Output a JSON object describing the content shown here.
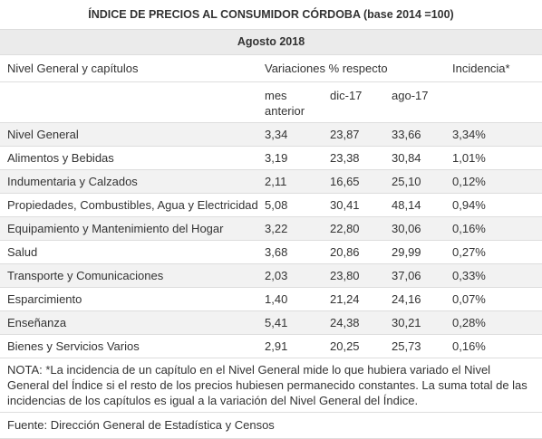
{
  "table": {
    "title": "ÍNDICE DE PRECIOS AL CONSUMIDOR CÓRDOBA (base 2014 =100)",
    "subtitle": "Agosto 2018",
    "header": {
      "label": "Nivel General y capítulos",
      "variaciones": "Variaciones % respecto",
      "incidencia": "Incidencia*",
      "sub": [
        "mes anterior",
        "dic-17",
        "ago-17"
      ]
    },
    "rows": [
      [
        "Nivel General",
        "3,34",
        "23,87",
        "33,66",
        "3,34%"
      ],
      [
        "Alimentos y Bebidas",
        "3,19",
        "23,38",
        "30,84",
        "1,01%"
      ],
      [
        "Indumentaria y Calzados",
        "2,11",
        "16,65",
        "25,10",
        "0,12%"
      ],
      [
        "Propiedades, Combustibles, Agua y Electricidad",
        "5,08",
        "30,41",
        "48,14",
        "0,94%"
      ],
      [
        "Equipamiento y Mantenimiento del Hogar",
        "3,22",
        "22,80",
        "30,06",
        "0,16%"
      ],
      [
        "Salud",
        "3,68",
        "20,86",
        "29,99",
        "0,27%"
      ],
      [
        "Transporte y Comunicaciones",
        "2,03",
        "23,80",
        "37,06",
        "0,33%"
      ],
      [
        "Esparcimiento",
        "1,40",
        "21,24",
        "24,16",
        "0,07%"
      ],
      [
        "Enseñanza",
        "5,41",
        "24,38",
        "30,21",
        "0,28%"
      ],
      [
        "Bienes y Servicios Varios",
        "2,91",
        "20,25",
        "25,73",
        "0,16%"
      ]
    ],
    "note": "NOTA: *La incidencia de un capítulo en el Nivel General mide lo que hubiera variado el Nivel General del Índice si el resto de los precios hubiesen permanecido constantes. La suma total de las incidencias de los capítulos es igual a la variación del Nivel General del Índice.",
    "source": "Fuente: Dirección General de Estadística y Censos"
  }
}
